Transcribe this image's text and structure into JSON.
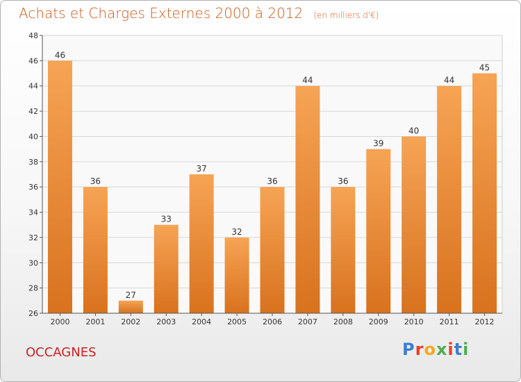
{
  "header": {
    "title": "Achats et Charges Externes 2000 à 2012",
    "unit_note": "(en milliers d'€)"
  },
  "footer": {
    "commune": "OCCAGNES",
    "logo_text": "Proxiti"
  },
  "colors": {
    "bar_top": "#f6a455",
    "bar_bottom": "#d8721e",
    "title": "#c95a1a",
    "commune": "#cc2222"
  },
  "chart_data": {
    "type": "bar",
    "title": "Achats et Charges Externes 2000 à 2012",
    "subtitle": "(en milliers d'€)",
    "xlabel": "",
    "ylabel": "",
    "categories": [
      "2000",
      "2001",
      "2002",
      "2003",
      "2004",
      "2005",
      "2006",
      "2007",
      "2008",
      "2009",
      "2010",
      "2011",
      "2012"
    ],
    "values": [
      46,
      36,
      27,
      33,
      37,
      32,
      36,
      44,
      36,
      39,
      40,
      44,
      45
    ],
    "ylim": [
      26,
      48
    ],
    "yticks": [
      26,
      28,
      30,
      32,
      34,
      36,
      38,
      40,
      42,
      44,
      46,
      48
    ],
    "grid": true,
    "data_labels": true
  }
}
